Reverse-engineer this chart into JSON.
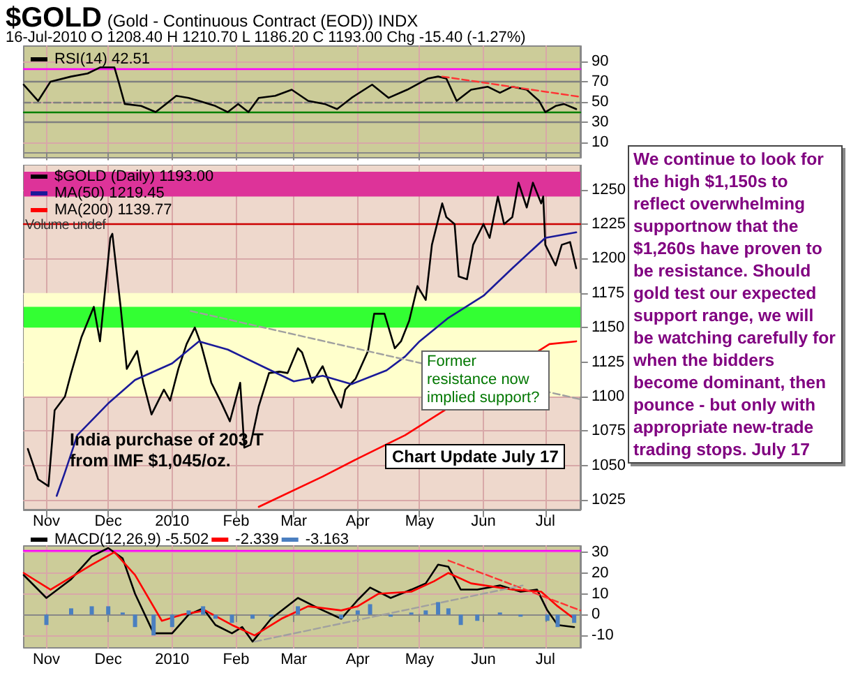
{
  "chart_data": [
    {
      "type": "line",
      "title": "$GOLD",
      "subtitle": "(Gold - Continuous Contract (EOD)) INDX",
      "annotations": [
        "16-Jul-2010  O 1208.40  H 1210.70  L 1186.20  C 1193.00  Chg -15.40 (-1.27%)"
      ],
      "xlim": [
        "2009-10-21",
        "2010-07-18"
      ],
      "xticks": [
        {
          "value": "2009-11-01",
          "label": null
        },
        {
          "value": "2009-12-01",
          "label": null
        },
        {
          "value": "2010-01-01",
          "label": null
        },
        {
          "value": "2010-02-01",
          "label": null
        },
        {
          "value": "2010-03-01",
          "label": null
        },
        {
          "value": "2010-04-01",
          "label": null
        },
        {
          "value": "2010-05-01",
          "label": null
        },
        {
          "value": "2010-06-01",
          "label": null
        },
        {
          "value": "2010-07-01",
          "label": null
        }
      ],
      "ylim": [
        -5,
        105
      ],
      "yticks": [
        10,
        30,
        50,
        70,
        90
      ],
      "tick_labels": "y",
      "grid": true,
      "legend": "top left",
      "marker": "none",
      "ref_lines": [
        {
          "axis": "y",
          "value": 83,
          "color": "#ff00ff"
        },
        {
          "axis": "y",
          "value": 70,
          "color": "#808080"
        },
        {
          "axis": "y",
          "value": 50,
          "color": "#808080",
          "line_style": "dashed"
        },
        {
          "axis": "y",
          "value": 40,
          "color": "#008000"
        },
        {
          "axis": "y",
          "value": 30,
          "color": "#808080"
        }
      ],
      "series": [
        {
          "name": "RSI(14) 42.51",
          "color": "#000000",
          "x": [
            "2009-10-21",
            "2009-10-28",
            "2009-11-03",
            "2009-11-13",
            "2009-11-21",
            "2009-11-27",
            "2009-12-04",
            "2009-12-06",
            "2009-12-09",
            "2009-12-17",
            "2009-12-24",
            "2009-12-29",
            "2010-01-03",
            "2010-01-09",
            "2010-01-14",
            "2010-01-22",
            "2010-01-28",
            "2010-02-02",
            "2010-02-07",
            "2010-02-12",
            "2010-02-20",
            "2010-02-28",
            "2010-03-08",
            "2010-03-16",
            "2010-03-22",
            "2010-03-29",
            "2010-04-08",
            "2010-04-16",
            "2010-04-25",
            "2010-05-05",
            "2010-05-10",
            "2010-05-14",
            "2010-05-19",
            "2010-05-26",
            "2010-06-03",
            "2010-06-09",
            "2010-06-15",
            "2010-06-22",
            "2010-06-28",
            "2010-07-01",
            "2010-07-06",
            "2010-07-10",
            "2010-07-16"
          ],
          "values": [
            67,
            51,
            70,
            75,
            78,
            84,
            84,
            70,
            48,
            46,
            40,
            48,
            56,
            54,
            51,
            46,
            40,
            48,
            40,
            54,
            56,
            62,
            51,
            48,
            43,
            54,
            67,
            54,
            62,
            73,
            75,
            73,
            51,
            62,
            65,
            59,
            65,
            62,
            51,
            40,
            46,
            48,
            43
          ]
        },
        {
          "color": "#ff3333",
          "line_style": "dashed",
          "x": [
            "2010-05-12",
            "2010-07-18"
          ],
          "values": [
            75,
            55
          ]
        }
      ]
    },
    {
      "type": "line",
      "annotations": [
        "Volume undef",
        "India purchase of 203 T from IMF $1,045/oz.",
        "Former resistance now implied support?",
        "Chart Update July 17",
        "We continue to look for the high $1,150s to reflect overwhelming supportnow that the $1,260s have proven to be resistance. Should gold test our expected support range, we will be watching carefully for when the bidders become dominant, then pounce - but only with appropriate new-trade trading stops.  July 17"
      ],
      "xlim": [
        "2009-10-21",
        "2010-07-18"
      ],
      "xticks": [
        {
          "value": "2009-11-01",
          "label": "Nov"
        },
        {
          "value": "2009-12-01",
          "label": "Dec"
        },
        {
          "value": "2010-01-01",
          "label": "2010"
        },
        {
          "value": "2010-02-01",
          "label": "Feb"
        },
        {
          "value": "2010-03-01",
          "label": "Mar"
        },
        {
          "value": "2010-04-01",
          "label": "Apr"
        },
        {
          "value": "2010-05-01",
          "label": "May"
        },
        {
          "value": "2010-06-01",
          "label": "Jun"
        },
        {
          "value": "2010-07-01",
          "label": "Jul"
        }
      ],
      "ylim": [
        1018,
        1268
      ],
      "yticks": [
        1025,
        1050,
        1075,
        1100,
        1125,
        1150,
        1175,
        1200,
        1225,
        1250
      ],
      "grid": true,
      "legend": "top left",
      "marker": "none",
      "bands": [
        {
          "axis": "y",
          "from": 1100,
          "to": 1175,
          "color": "#ffffcc"
        },
        {
          "axis": "y",
          "from": 1150,
          "to": 1165,
          "color": "#33ff33"
        },
        {
          "axis": "y",
          "from": 1245,
          "to": 1263,
          "color": "#dd3399"
        }
      ],
      "ref_lines": [
        {
          "axis": "y",
          "value": 1225,
          "color": "#cc0000"
        }
      ],
      "series": [
        {
          "name": "$GOLD (Daily) 1193.00",
          "color": "#000000",
          "x": [
            "2009-10-23",
            "2009-10-28",
            "2009-11-02",
            "2009-11-05",
            "2009-11-10",
            "2009-11-13",
            "2009-11-18",
            "2009-11-24",
            "2009-11-27",
            "2009-12-02",
            "2009-12-03",
            "2009-12-07",
            "2009-12-10",
            "2009-12-15",
            "2009-12-18",
            "2009-12-22",
            "2009-12-28",
            "2009-12-31",
            "2010-01-04",
            "2010-01-08",
            "2010-01-12",
            "2010-01-15",
            "2010-01-20",
            "2010-01-25",
            "2010-01-29",
            "2010-02-03",
            "2010-02-05",
            "2010-02-08",
            "2010-02-12",
            "2010-02-17",
            "2010-02-22",
            "2010-02-26",
            "2010-03-03",
            "2010-03-05",
            "2010-03-10",
            "2010-03-15",
            "2010-03-19",
            "2010-03-24",
            "2010-03-26",
            "2010-03-31",
            "2010-04-06",
            "2010-04-09",
            "2010-04-14",
            "2010-04-19",
            "2010-04-22",
            "2010-04-26",
            "2010-04-30",
            "2010-05-04",
            "2010-05-07",
            "2010-05-12",
            "2010-05-14",
            "2010-05-18",
            "2010-05-20",
            "2010-05-24",
            "2010-05-27",
            "2010-06-01",
            "2010-06-04",
            "2010-06-08",
            "2010-06-11",
            "2010-06-15",
            "2010-06-18",
            "2010-06-22",
            "2010-06-25",
            "2010-06-29",
            "2010-06-30",
            "2010-07-01",
            "2010-07-06",
            "2010-07-09",
            "2010-07-13",
            "2010-07-16"
          ],
          "values": [
            1062,
            1040,
            1035,
            1090,
            1100,
            1117,
            1143,
            1165,
            1140,
            1215,
            1218,
            1165,
            1120,
            1133,
            1110,
            1087,
            1105,
            1097,
            1120,
            1138,
            1150,
            1138,
            1110,
            1095,
            1082,
            1110,
            1063,
            1065,
            1093,
            1117,
            1118,
            1117,
            1135,
            1132,
            1110,
            1122,
            1107,
            1092,
            1105,
            1113,
            1133,
            1160,
            1160,
            1135,
            1140,
            1155,
            1180,
            1170,
            1210,
            1240,
            1230,
            1225,
            1187,
            1185,
            1210,
            1225,
            1215,
            1245,
            1225,
            1230,
            1255,
            1237,
            1255,
            1240,
            1245,
            1210,
            1195,
            1210,
            1212,
            1193
          ]
        },
        {
          "name": "MA(50) 1219.45",
          "color": "#1a1a99",
          "x": [
            "2009-11-06",
            "2009-11-10",
            "2009-11-16",
            "2009-12-01",
            "2009-12-14",
            "2010-01-01",
            "2010-01-14",
            "2010-01-28",
            "2010-02-15",
            "2010-03-01",
            "2010-03-15",
            "2010-03-29",
            "2010-04-15",
            "2010-04-24",
            "2010-05-01",
            "2010-05-15",
            "2010-06-01",
            "2010-06-15",
            "2010-07-01",
            "2010-07-16"
          ],
          "values": [
            1028,
            1045,
            1072,
            1095,
            1112,
            1124,
            1140,
            1134,
            1121,
            1111,
            1115,
            1109,
            1119,
            1129,
            1140,
            1157,
            1173,
            1193,
            1215,
            1219
          ]
        },
        {
          "name": "MA(200) 1139.77",
          "color": "#ff0000",
          "x": [
            "2010-02-12",
            "2010-03-15",
            "2010-04-01",
            "2010-04-24",
            "2010-07-03",
            "2010-07-16"
          ],
          "values": [
            1020,
            1042,
            1055,
            1072,
            1138,
            1140
          ]
        },
        {
          "color": "#a0a0a0",
          "line_style": "dashed",
          "x": [
            "2010-01-10",
            "2010-07-18"
          ],
          "values": [
            1162,
            1098
          ]
        }
      ]
    },
    {
      "type": "line",
      "xlim": [
        "2009-10-21",
        "2010-07-18"
      ],
      "xticks": [
        {
          "value": "2009-11-01",
          "label": "Nov"
        },
        {
          "value": "2009-12-01",
          "label": "Dec"
        },
        {
          "value": "2010-01-01",
          "label": "2010"
        },
        {
          "value": "2010-02-01",
          "label": "Feb"
        },
        {
          "value": "2010-03-01",
          "label": "Mar"
        },
        {
          "value": "2010-04-01",
          "label": "Apr"
        },
        {
          "value": "2010-05-01",
          "label": "May"
        },
        {
          "value": "2010-06-01",
          "label": "Jun"
        },
        {
          "value": "2010-07-01",
          "label": "Jul"
        }
      ],
      "ylim": [
        -16,
        33
      ],
      "yticks": [
        -10,
        0,
        10,
        20,
        30
      ],
      "grid": true,
      "legend": "top left",
      "marker": "none",
      "ref_lines": [
        {
          "axis": "y",
          "value": 31,
          "color": "#ff00ff"
        }
      ],
      "series": [
        {
          "name": "MACD(12,26,9) -5.502",
          "color": "#000000",
          "x": [
            "2009-10-21",
            "2009-11-01",
            "2009-11-13",
            "2009-11-23",
            "2009-12-01",
            "2009-12-08",
            "2009-12-14",
            "2009-12-23",
            "2010-01-01",
            "2010-01-09",
            "2010-01-16",
            "2010-01-22",
            "2010-01-30",
            "2010-02-04",
            "2010-02-09",
            "2010-02-18",
            "2010-03-03",
            "2010-03-13",
            "2010-03-24",
            "2010-04-01",
            "2010-04-07",
            "2010-04-17",
            "2010-04-27",
            "2010-05-04",
            "2010-05-10",
            "2010-05-15",
            "2010-05-21",
            "2010-05-29",
            "2010-06-09",
            "2010-06-19",
            "2010-06-27",
            "2010-07-02",
            "2010-07-07",
            "2010-07-15"
          ],
          "values": [
            19,
            8,
            17,
            28,
            32,
            27,
            10,
            -9,
            -9,
            0,
            3,
            -5,
            -9,
            -6,
            -13,
            -2,
            8,
            3,
            -2,
            7,
            13,
            8,
            12,
            15,
            24,
            23,
            12,
            12,
            14,
            11,
            12,
            2,
            -5,
            -6
          ]
        },
        {
          "name": "-2.339",
          "color": "#ff0000",
          "x": [
            "2009-10-21",
            "2009-11-03",
            "2009-11-23",
            "2009-12-04",
            "2009-12-14",
            "2009-12-27",
            "2010-01-06",
            "2010-01-17",
            "2010-01-30",
            "2010-02-10",
            "2010-02-23",
            "2010-03-08",
            "2010-03-24",
            "2010-04-01",
            "2010-04-11",
            "2010-04-27",
            "2010-05-08",
            "2010-05-15",
            "2010-05-26",
            "2010-06-15",
            "2010-06-29",
            "2010-07-07",
            "2010-07-15"
          ],
          "values": [
            20,
            12,
            24,
            30,
            19,
            -3,
            0,
            2,
            -5,
            -10,
            -2,
            4,
            2,
            4,
            10,
            11,
            16,
            20,
            15,
            12,
            11,
            4,
            -2
          ]
        },
        {
          "name": "-3.163",
          "color": "#4a7fc0",
          "type": "bar",
          "x": [
            "2009-11-01",
            "2009-11-13",
            "2009-11-23",
            "2009-12-01",
            "2009-12-08",
            "2009-12-14",
            "2009-12-23",
            "2010-01-01",
            "2010-01-09",
            "2010-01-16",
            "2010-01-22",
            "2010-01-30",
            "2010-02-09",
            "2010-02-18",
            "2010-03-03",
            "2010-03-13",
            "2010-03-24",
            "2010-04-01",
            "2010-04-07",
            "2010-04-17",
            "2010-04-27",
            "2010-05-04",
            "2010-05-10",
            "2010-05-15",
            "2010-05-21",
            "2010-05-29",
            "2010-06-09",
            "2010-06-19",
            "2010-06-27",
            "2010-07-02",
            "2010-07-07",
            "2010-07-15"
          ],
          "values": [
            -5,
            3,
            4,
            4,
            1,
            -6,
            -10,
            -6,
            2,
            4,
            -2,
            -4,
            -2,
            -1,
            4,
            0,
            -2,
            2,
            5,
            -1,
            1,
            2,
            6,
            3,
            -5,
            -3,
            1,
            -1,
            0,
            -3,
            -6,
            -4
          ]
        },
        {
          "color": "#ff3333",
          "line_style": "dashed",
          "x": [
            "2010-05-15",
            "2010-07-18"
          ],
          "values": [
            26,
            2
          ]
        },
        {
          "color": "#a0a0a0",
          "line_style": "dashed",
          "x": [
            "2010-02-10",
            "2010-06-20"
          ],
          "values": [
            -13,
            14
          ]
        }
      ]
    }
  ]
}
